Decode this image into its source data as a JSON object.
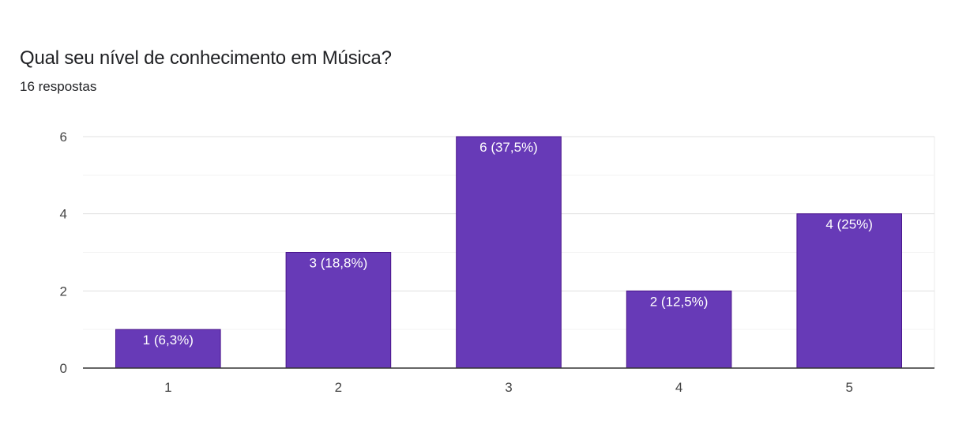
{
  "form": {
    "question": "Qual seu nível de conhecimento em Música?",
    "responses": "16 respostas"
  },
  "colors": {
    "bar": "#673ab7",
    "bar_border": "#4a148c",
    "grid": "#ebebeb",
    "axis": "#333333",
    "text": "#202124"
  },
  "chart_data": {
    "type": "bar",
    "categories": [
      "1",
      "2",
      "3",
      "4",
      "5"
    ],
    "values": [
      1,
      3,
      6,
      2,
      4
    ],
    "data_labels": [
      "1 (6,3%)",
      "3 (18,8%)",
      "6 (37,5%)",
      "2 (12,5%)",
      "4 (25%)"
    ],
    "title": "Qual seu nível de conhecimento em Música?",
    "subtitle": "16 respostas",
    "ylim": [
      0,
      6
    ],
    "yticks": [
      0,
      2,
      4,
      6
    ],
    "grid": true,
    "legend": "none"
  }
}
